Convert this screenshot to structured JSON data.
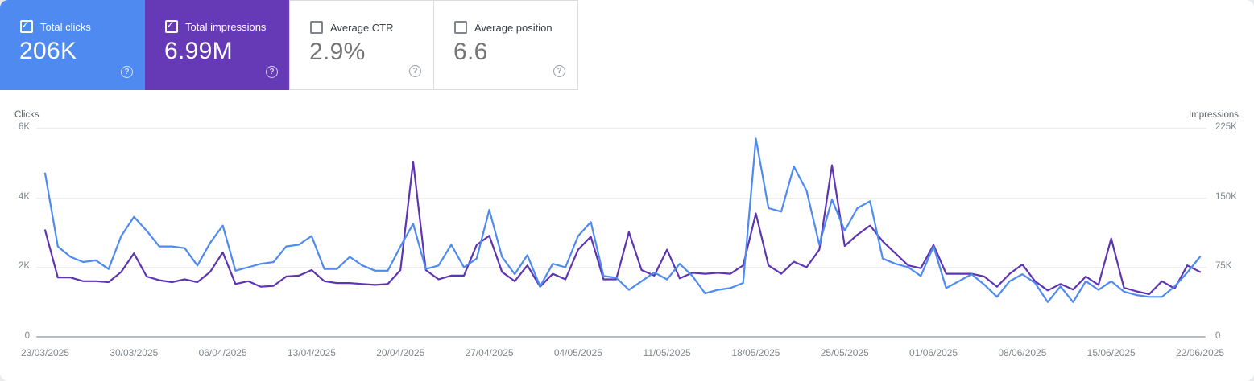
{
  "cards": [
    {
      "id": "total-clicks",
      "label": "Total clicks",
      "value": "206K",
      "checked": true,
      "bg": "#4e8af0",
      "fg": "#ffffff",
      "value_fg": "#ffffff",
      "checkbox_color": "#ffffff",
      "help_fg": "rgba(255,255,255,0.75)"
    },
    {
      "id": "total-impressions",
      "label": "Total impressions",
      "value": "6.99M",
      "checked": true,
      "bg": "#6639b7",
      "fg": "#ffffff",
      "value_fg": "#ffffff",
      "checkbox_color": "#ffffff",
      "help_fg": "rgba(255,255,255,0.75)"
    },
    {
      "id": "average-ctr",
      "label": "Average CTR",
      "value": "2.9%",
      "checked": false,
      "bg": "#ffffff",
      "fg": "#3c4043",
      "value_fg": "#757575",
      "checkbox_color": "#80868b",
      "help_fg": "#9aa0a6"
    },
    {
      "id": "average-position",
      "label": "Average position",
      "value": "6.6",
      "checked": false,
      "bg": "#ffffff",
      "fg": "#3c4043",
      "value_fg": "#757575",
      "checkbox_color": "#80868b",
      "help_fg": "#9aa0a6"
    }
  ],
  "icons": {
    "checkmark": "✓",
    "help": "?"
  },
  "chart_data": {
    "type": "line",
    "x_start_date": "23/03/2025",
    "x_end_date": "22/06/2025",
    "x_tick_labels": [
      "23/03/2025",
      "30/03/2025",
      "06/04/2025",
      "13/04/2025",
      "20/04/2025",
      "27/04/2025",
      "04/05/2025",
      "11/05/2025",
      "18/05/2025",
      "25/05/2025",
      "01/06/2025",
      "08/06/2025",
      "15/06/2025",
      "22/06/2025"
    ],
    "left_axis": {
      "title": "Clicks",
      "ticks": [
        "6K",
        "4K",
        "2K",
        "0"
      ],
      "min": 0,
      "max": 6000
    },
    "right_axis": {
      "title": "Impressions",
      "ticks": [
        "225K",
        "150K",
        "75K",
        "0"
      ],
      "min": 0,
      "max": 225000
    },
    "grid": true,
    "legend_position": "none",
    "series": [
      {
        "name": "Clicks",
        "axis": "left",
        "color": "#4e8af0",
        "values": [
          4700,
          2600,
          2300,
          2150,
          2200,
          1950,
          2900,
          3450,
          3050,
          2600,
          2600,
          2550,
          2050,
          2700,
          3200,
          1900,
          2000,
          2100,
          2150,
          2600,
          2650,
          2900,
          1950,
          1950,
          2300,
          2050,
          1900,
          1900,
          2600,
          3250,
          1950,
          2050,
          2650,
          2000,
          2250,
          3650,
          2300,
          1800,
          2350,
          1450,
          2100,
          2000,
          2900,
          3300,
          1750,
          1700,
          1350,
          1600,
          1850,
          1650,
          2100,
          1750,
          1250,
          1350,
          1400,
          1550,
          5700,
          3700,
          3600,
          4900,
          4200,
          2650,
          3950,
          3050,
          3700,
          3900,
          2250,
          2100,
          2000,
          1750,
          2600,
          1400,
          1600,
          1800,
          1500,
          1150,
          1600,
          1800,
          1550,
          1000,
          1450,
          1000,
          1600,
          1350,
          1600,
          1300,
          1200,
          1150,
          1150,
          1450,
          1850,
          2300
        ]
      },
      {
        "name": "Impressions",
        "axis": "right",
        "color": "#5e35b1",
        "values": [
          115000,
          64000,
          64000,
          60000,
          60000,
          59000,
          70000,
          90000,
          65000,
          61000,
          59000,
          62000,
          59000,
          70000,
          91000,
          57000,
          60000,
          54000,
          55000,
          65000,
          66000,
          72000,
          60000,
          58000,
          58000,
          57000,
          56000,
          57000,
          72000,
          189000,
          72000,
          62000,
          66000,
          66000,
          99000,
          109000,
          70000,
          60000,
          77000,
          54000,
          68000,
          62000,
          94000,
          108000,
          62000,
          62000,
          113000,
          72000,
          66000,
          94000,
          63000,
          69000,
          68000,
          69000,
          68000,
          77000,
          133000,
          77000,
          68000,
          81000,
          75000,
          94000,
          185000,
          98000,
          110000,
          120000,
          103000,
          90000,
          77000,
          74000,
          99000,
          68000,
          68000,
          68000,
          65000,
          54000,
          68000,
          78000,
          60000,
          50000,
          57000,
          51000,
          65000,
          56000,
          106000,
          53000,
          49000,
          46000,
          60000,
          52000,
          77000,
          70000
        ]
      }
    ]
  }
}
